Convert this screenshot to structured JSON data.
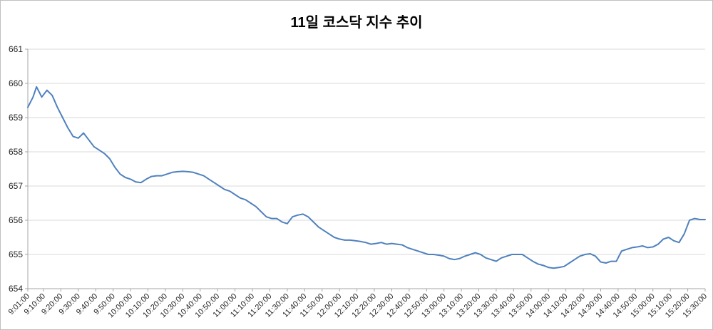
{
  "chart_data": {
    "type": "line",
    "title": "11일 코스닥 지수 추이",
    "xlabel": "",
    "ylabel": "",
    "ylim": [
      654,
      661
    ],
    "y_ticks": [
      654,
      655,
      656,
      657,
      658,
      659,
      660,
      661
    ],
    "xlim_minutes": [
      1,
      390
    ],
    "grid": "horizontal",
    "legend": "none",
    "line_color": "#4F81BD",
    "grid_color": "#D9D9D9",
    "axis_color": "#A6A6A6",
    "label_color": "#262626",
    "x_tick_labels": [
      "9:01:00",
      "9:10:00",
      "9:20:00",
      "9:30:00",
      "9:40:00",
      "9:50:00",
      "10:00:00",
      "10:10:00",
      "10:20:00",
      "10:30:00",
      "10:40:00",
      "10:50:00",
      "11:00:00",
      "11:10:00",
      "11:20:00",
      "11:30:00",
      "11:40:00",
      "11:50:00",
      "12:00:00",
      "12:10:00",
      "12:20:00",
      "12:30:00",
      "12:40:00",
      "12:50:00",
      "13:00:00",
      "13:10:00",
      "13:20:00",
      "13:30:00",
      "13:40:00",
      "13:50:00",
      "14:00:00",
      "14:10:00",
      "14:20:00",
      "14:30:00",
      "14:40:00",
      "14:50:00",
      "15:00:00",
      "15:10:00",
      "15:20:00",
      "15:30:00"
    ],
    "x_tick_minutes": [
      1,
      10,
      20,
      30,
      40,
      50,
      60,
      70,
      80,
      90,
      100,
      110,
      120,
      130,
      140,
      150,
      160,
      170,
      180,
      190,
      200,
      210,
      220,
      230,
      240,
      250,
      260,
      270,
      280,
      290,
      300,
      310,
      320,
      330,
      340,
      350,
      360,
      370,
      380,
      390
    ],
    "series": [
      {
        "points": [
          [
            1,
            659.3
          ],
          [
            4,
            659.6
          ],
          [
            6,
            659.9
          ],
          [
            9,
            659.6
          ],
          [
            12,
            659.8
          ],
          [
            15,
            659.65
          ],
          [
            18,
            659.3
          ],
          [
            21,
            659.0
          ],
          [
            24,
            658.7
          ],
          [
            27,
            658.45
          ],
          [
            30,
            658.4
          ],
          [
            33,
            658.55
          ],
          [
            36,
            658.35
          ],
          [
            39,
            658.15
          ],
          [
            42,
            658.05
          ],
          [
            45,
            657.95
          ],
          [
            48,
            657.8
          ],
          [
            51,
            657.55
          ],
          [
            54,
            657.35
          ],
          [
            57,
            657.25
          ],
          [
            60,
            657.2
          ],
          [
            63,
            657.12
          ],
          [
            66,
            657.1
          ],
          [
            69,
            657.2
          ],
          [
            72,
            657.28
          ],
          [
            75,
            657.3
          ],
          [
            78,
            657.3
          ],
          [
            81,
            657.35
          ],
          [
            84,
            657.4
          ],
          [
            87,
            657.42
          ],
          [
            90,
            657.43
          ],
          [
            93,
            657.42
          ],
          [
            96,
            657.4
          ],
          [
            99,
            657.35
          ],
          [
            102,
            657.3
          ],
          [
            105,
            657.2
          ],
          [
            108,
            657.1
          ],
          [
            111,
            657.0
          ],
          [
            114,
            656.9
          ],
          [
            117,
            656.85
          ],
          [
            120,
            656.75
          ],
          [
            123,
            656.65
          ],
          [
            126,
            656.6
          ],
          [
            129,
            656.5
          ],
          [
            132,
            656.4
          ],
          [
            135,
            656.25
          ],
          [
            138,
            656.1
          ],
          [
            141,
            656.05
          ],
          [
            144,
            656.05
          ],
          [
            147,
            655.95
          ],
          [
            150,
            655.9
          ],
          [
            153,
            656.1
          ],
          [
            156,
            656.15
          ],
          [
            159,
            656.18
          ],
          [
            162,
            656.1
          ],
          [
            165,
            655.95
          ],
          [
            168,
            655.8
          ],
          [
            171,
            655.7
          ],
          [
            174,
            655.6
          ],
          [
            177,
            655.5
          ],
          [
            180,
            655.45
          ],
          [
            183,
            655.42
          ],
          [
            186,
            655.42
          ],
          [
            189,
            655.4
          ],
          [
            192,
            655.38
          ],
          [
            195,
            655.35
          ],
          [
            198,
            655.3
          ],
          [
            201,
            655.32
          ],
          [
            204,
            655.35
          ],
          [
            207,
            655.3
          ],
          [
            210,
            655.32
          ],
          [
            213,
            655.3
          ],
          [
            216,
            655.28
          ],
          [
            219,
            655.2
          ],
          [
            222,
            655.15
          ],
          [
            225,
            655.1
          ],
          [
            228,
            655.05
          ],
          [
            231,
            655.0
          ],
          [
            234,
            655.0
          ],
          [
            237,
            654.98
          ],
          [
            240,
            654.95
          ],
          [
            243,
            654.88
          ],
          [
            246,
            654.85
          ],
          [
            249,
            654.88
          ],
          [
            252,
            654.95
          ],
          [
            255,
            655.0
          ],
          [
            258,
            655.05
          ],
          [
            261,
            655.0
          ],
          [
            264,
            654.9
          ],
          [
            267,
            654.85
          ],
          [
            270,
            654.8
          ],
          [
            273,
            654.9
          ],
          [
            276,
            654.95
          ],
          [
            279,
            655.0
          ],
          [
            282,
            655.0
          ],
          [
            285,
            655.0
          ],
          [
            288,
            654.9
          ],
          [
            291,
            654.8
          ],
          [
            294,
            654.72
          ],
          [
            297,
            654.68
          ],
          [
            300,
            654.62
          ],
          [
            303,
            654.6
          ],
          [
            306,
            654.62
          ],
          [
            309,
            654.65
          ],
          [
            312,
            654.75
          ],
          [
            315,
            654.85
          ],
          [
            318,
            654.95
          ],
          [
            321,
            655.0
          ],
          [
            324,
            655.02
          ],
          [
            327,
            654.95
          ],
          [
            330,
            654.78
          ],
          [
            333,
            654.75
          ],
          [
            336,
            654.8
          ],
          [
            339,
            654.8
          ],
          [
            342,
            655.1
          ],
          [
            345,
            655.15
          ],
          [
            348,
            655.2
          ],
          [
            351,
            655.22
          ],
          [
            354,
            655.25
          ],
          [
            357,
            655.2
          ],
          [
            360,
            655.22
          ],
          [
            363,
            655.3
          ],
          [
            366,
            655.45
          ],
          [
            369,
            655.5
          ],
          [
            372,
            655.4
          ],
          [
            375,
            655.35
          ],
          [
            378,
            655.6
          ],
          [
            381,
            656.0
          ],
          [
            384,
            656.05
          ],
          [
            387,
            656.02
          ],
          [
            390,
            656.02
          ]
        ]
      }
    ]
  }
}
